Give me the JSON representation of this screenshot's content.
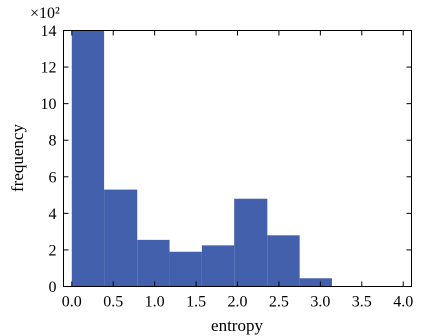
{
  "chart_data": {
    "type": "bar",
    "title": "",
    "xlabel": "entropy",
    "ylabel": "frequency",
    "y_multiplier": "×10²",
    "xlim": [
      -0.1,
      4.1
    ],
    "ylim": [
      0,
      14
    ],
    "xticks": [
      "0.0",
      "0.5",
      "1.0",
      "1.5",
      "2.0",
      "2.5",
      "3.0",
      "3.5",
      "4.0"
    ],
    "yticks": [
      "0",
      "2",
      "4",
      "6",
      "8",
      "10",
      "12",
      "14"
    ],
    "bin_edges": [
      0.0,
      0.39,
      0.79,
      1.18,
      1.57,
      1.96,
      2.36,
      2.75,
      3.14
    ],
    "values": [
      14.0,
      5.3,
      2.55,
      1.9,
      2.25,
      4.8,
      2.8,
      0.45
    ],
    "bar_color": "#4360ad",
    "grid": false,
    "legend": "none"
  }
}
